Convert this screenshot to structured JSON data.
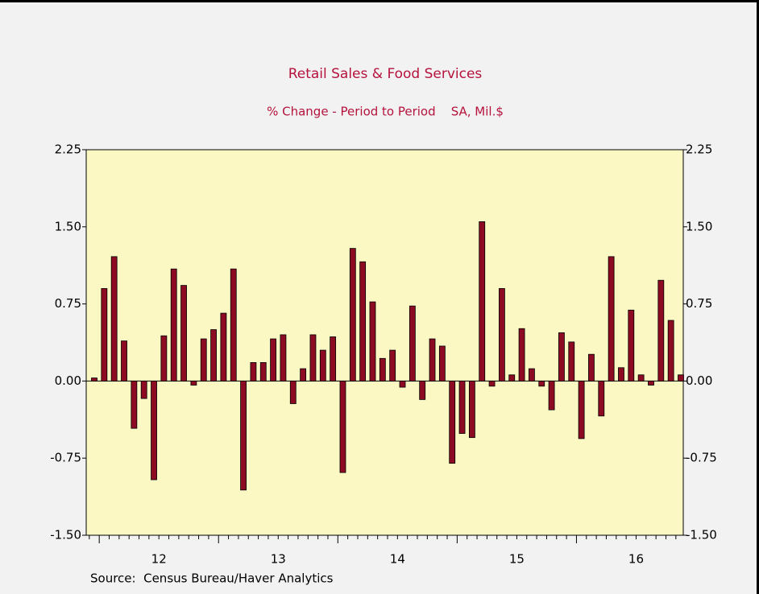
{
  "chart_data": {
    "type": "bar",
    "title": "Retail Sales & Food Services",
    "subtitle": "% Change - Period to Period    SA, Mil.$",
    "source": "Source:  Census Bureau/Haver Analytics",
    "categories": [
      null,
      null,
      null,
      null,
      null,
      null,
      null,
      null,
      null,
      null,
      null,
      null,
      null,
      null,
      null,
      null,
      null,
      null,
      null,
      null,
      null,
      null,
      null,
      null,
      null,
      null,
      null,
      null,
      null,
      null,
      null,
      null,
      null,
      null,
      null,
      null,
      null,
      null,
      null,
      null,
      null,
      null,
      null,
      null,
      null,
      null,
      null,
      null,
      null,
      null,
      null,
      null,
      null,
      null,
      null,
      null,
      null,
      null,
      null,
      null
    ],
    "x_labels": [
      "12",
      "13",
      "14",
      "15",
      "16"
    ],
    "values": [
      0.03,
      0.9,
      1.21,
      0.39,
      -0.46,
      -0.17,
      -0.96,
      0.44,
      1.09,
      0.93,
      -0.04,
      0.41,
      0.5,
      0.66,
      1.09,
      -1.06,
      0.18,
      0.18,
      0.41,
      0.45,
      -0.22,
      0.12,
      0.45,
      0.3,
      0.43,
      -0.89,
      1.29,
      1.16,
      0.77,
      0.22,
      0.3,
      -0.06,
      0.73,
      -0.18,
      0.41,
      0.34,
      -0.8,
      -0.51,
      -0.55,
      1.55,
      -0.05,
      0.9,
      0.06,
      0.51,
      0.12,
      -0.05,
      -0.28,
      0.47,
      0.38,
      -0.56,
      0.26,
      -0.34,
      1.21,
      0.13,
      0.69,
      0.06,
      -0.04,
      0.98,
      0.59,
      0.06
    ],
    "color": "#8c0a22",
    "ylim": [
      -1.5,
      2.25
    ],
    "yticks": [
      {
        "value": -1.5,
        "label": "-1.50"
      },
      {
        "value": -0.75,
        "label": "-0.75"
      },
      {
        "value": 0,
        "label": "0.00"
      },
      {
        "value": 0.75,
        "label": "0.75"
      },
      {
        "value": 1.5,
        "label": "1.50"
      },
      {
        "value": 2.25,
        "label": "2.25"
      }
    ]
  }
}
